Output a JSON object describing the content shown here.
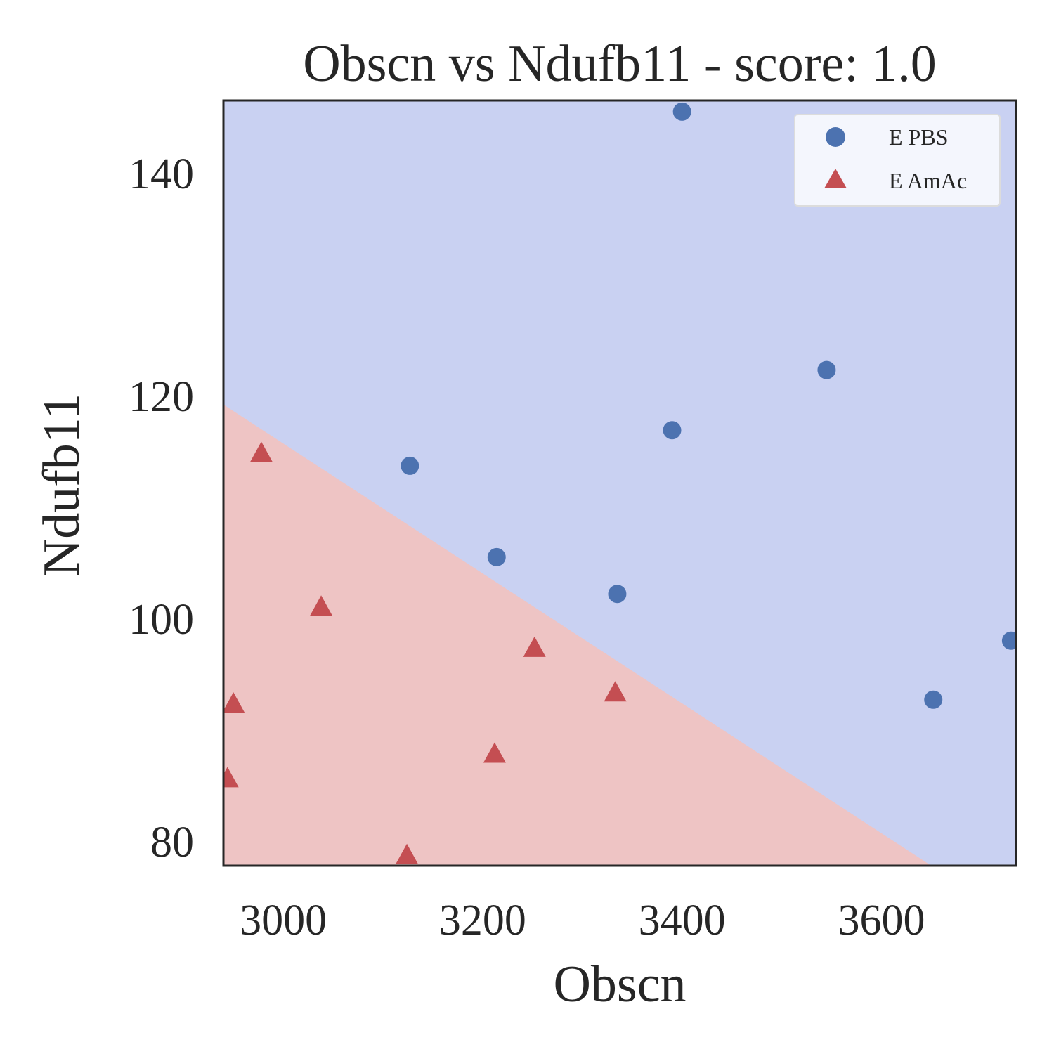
{
  "chart_data": {
    "type": "scatter",
    "title": "Obscn vs Ndufb11 - score: 1.0",
    "xlabel": "Obscn",
    "ylabel": "Ndufb11",
    "xlim": [
      2940,
      3735
    ],
    "ylim": [
      77.8,
      146.5
    ],
    "xticks": [
      3000,
      3200,
      3400,
      3600
    ],
    "yticks": [
      80,
      100,
      120,
      140
    ],
    "grid": false,
    "legend_position": "upper right",
    "decision_boundary": {
      "points": [
        [
          2940,
          119.2
        ],
        [
          3650,
          77.8
        ]
      ],
      "below_class": "E AmAc",
      "above_class": "E PBS",
      "below_color": "#eec4c4",
      "above_color": "#c9d1f2"
    },
    "series": [
      {
        "name": "E PBS",
        "marker": "circle",
        "color": "#4c72b0",
        "x": [
          3400,
          3545,
          3390,
          3127,
          3214,
          3335,
          3652,
          3730
        ],
        "y": [
          145.5,
          122.3,
          116.9,
          113.7,
          105.5,
          102.2,
          92.7,
          98.0
        ]
      },
      {
        "name": "E AmAc",
        "marker": "triangle",
        "color": "#c44e52",
        "x": [
          2978,
          3038,
          3252,
          3333,
          3212,
          2950,
          2944,
          3124
        ],
        "y": [
          114.8,
          101.0,
          97.3,
          93.3,
          87.8,
          92.3,
          85.6,
          78.7
        ]
      }
    ]
  }
}
